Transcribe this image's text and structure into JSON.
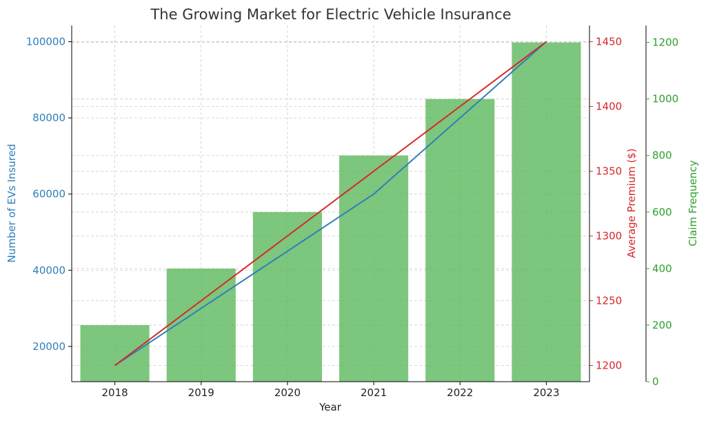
{
  "chart_data": {
    "type": "bar",
    "title": "The Growing Market for Electric Vehicle Insurance",
    "xlabel": "Year",
    "categories": [
      "2018",
      "2019",
      "2020",
      "2021",
      "2022",
      "2023"
    ],
    "grid": true,
    "series": [
      {
        "name": "Claim Frequency",
        "kind": "bar",
        "axis": "right-outer",
        "color": "#5cb85c",
        "values": [
          200,
          400,
          600,
          800,
          1000,
          1200
        ]
      },
      {
        "name": "Number of EVs Insured",
        "kind": "line",
        "axis": "left",
        "color": "#2f7fb8",
        "values": [
          15000,
          30000,
          45000,
          60000,
          80000,
          100000
        ]
      },
      {
        "name": "Average Premium ($)",
        "kind": "line",
        "axis": "right-inner",
        "color": "#d62728",
        "values": [
          1200,
          1250,
          1300,
          1350,
          1400,
          1450
        ]
      }
    ],
    "axes": {
      "left": {
        "label": "Number of EVs Insured",
        "color": "#2f7fb8",
        "ylim": [
          10750,
          104250
        ],
        "ticks": [
          "20000",
          "40000",
          "60000",
          "80000",
          "100000"
        ]
      },
      "right_inner": {
        "label": "Average Premium ($)",
        "color": "#d62728",
        "ylim": [
          1187.5,
          1462.5
        ],
        "ticks": [
          "1200",
          "1250",
          "1300",
          "1350",
          "1400",
          "1450"
        ]
      },
      "right_outer": {
        "label": "Claim Frequency",
        "color": "#2ca02c",
        "ylim": [
          0,
          1260
        ],
        "ticks": [
          "0",
          "200",
          "400",
          "600",
          "800",
          "1000",
          "1200"
        ]
      }
    }
  }
}
